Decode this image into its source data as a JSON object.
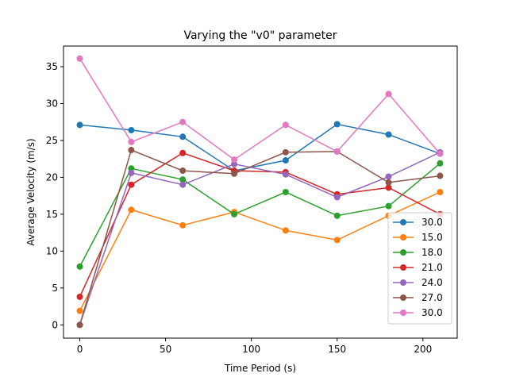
{
  "chart_data": {
    "type": "line",
    "title": "Varying the \"v0\" parameter",
    "xlabel": "Time Period (s)",
    "ylabel": "Average Velocity (m/s)",
    "x": [
      0,
      30,
      60,
      90,
      120,
      150,
      180,
      210
    ],
    "xlim": [
      -9.5,
      220
    ],
    "ylim": [
      -1.8,
      37.8
    ],
    "xticks": [
      0,
      50,
      100,
      150,
      200
    ],
    "yticks": [
      0,
      5,
      10,
      15,
      20,
      25,
      30,
      35
    ],
    "grid": false,
    "legend_position": "lower right",
    "marker": "circle",
    "series": [
      {
        "name": "30.0",
        "color": "#1f77b4",
        "values": [
          27.1,
          26.4,
          25.5,
          20.9,
          22.3,
          27.2,
          25.8,
          23.2
        ]
      },
      {
        "name": "15.0",
        "color": "#ff7f0e",
        "values": [
          1.9,
          15.6,
          13.5,
          15.3,
          12.8,
          11.5,
          14.8,
          18.0
        ]
      },
      {
        "name": "18.0",
        "color": "#2ca02c",
        "values": [
          7.9,
          21.2,
          19.7,
          15.0,
          18.0,
          14.8,
          16.1,
          21.9
        ]
      },
      {
        "name": "21.0",
        "color": "#d62728",
        "values": [
          3.8,
          19.0,
          23.3,
          20.9,
          20.7,
          17.7,
          18.6,
          15.0
        ]
      },
      {
        "name": "24.0",
        "color": "#9467bd",
        "values": [
          0.0,
          20.6,
          19.0,
          21.8,
          20.4,
          17.3,
          20.1,
          23.4
        ]
      },
      {
        "name": "27.0",
        "color": "#8c564b",
        "values": [
          0.0,
          23.7,
          20.9,
          20.5,
          23.4,
          23.5,
          19.3,
          20.2
        ]
      },
      {
        "name": "30.0",
        "color": "#e377c2",
        "values": [
          36.1,
          24.8,
          27.5,
          22.4,
          27.1,
          23.5,
          31.3,
          23.2
        ]
      }
    ]
  }
}
